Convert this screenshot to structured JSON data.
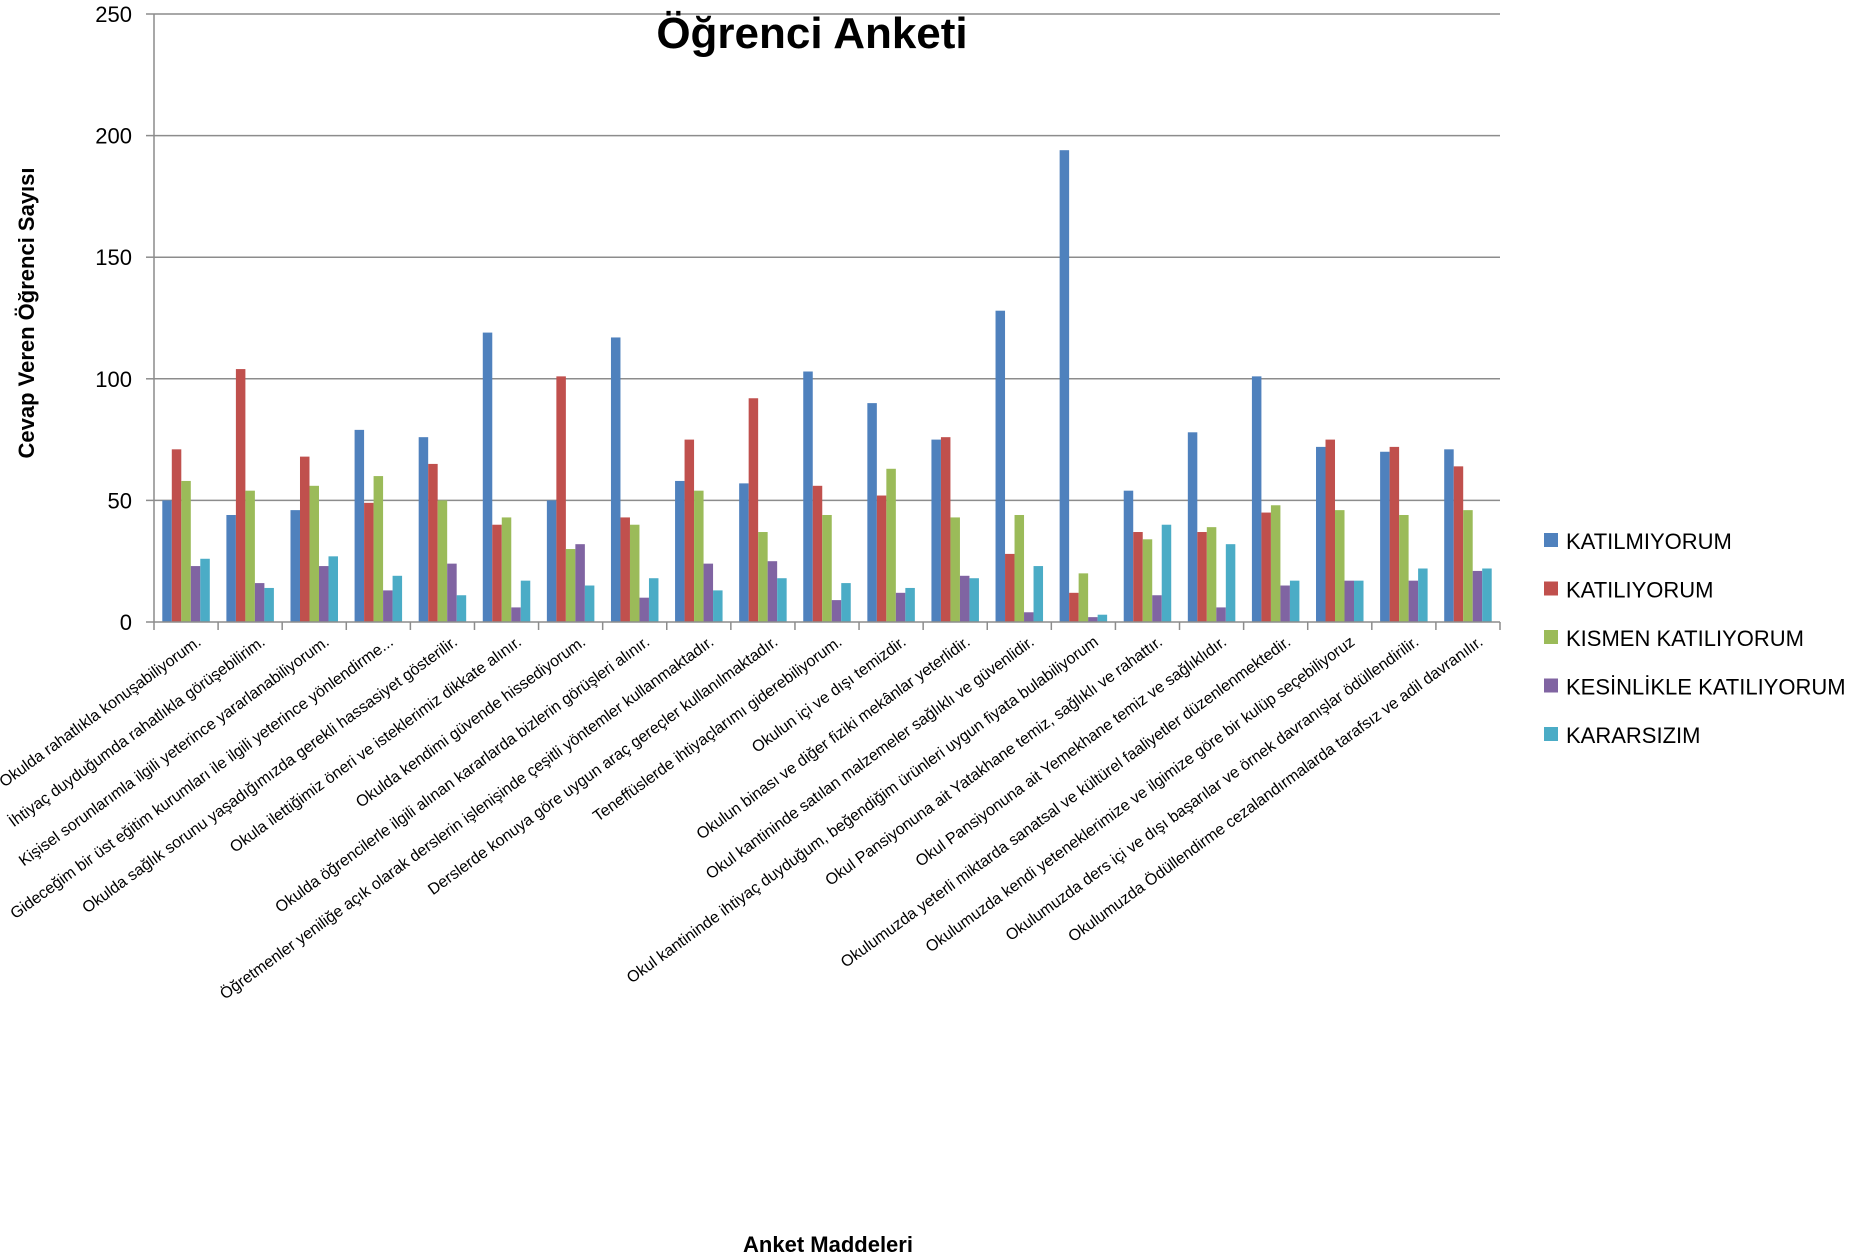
{
  "chart_data": {
    "type": "bar",
    "title": "Öğrenci Anketi",
    "xlabel": "Anket Maddeleri",
    "ylabel": "Cevap Veren Öğrenci Sayısı",
    "ylim": [
      0,
      250
    ],
    "yticks": [
      "0",
      "50",
      "100",
      "150",
      "200",
      "250"
    ],
    "grid": true,
    "legend_position": "right",
    "categories": [
      "Okulda rahatlıkla konuşabiliyorum.",
      "İhtiyaç duyduğumda rahatlıkla görüşebilirim.",
      "Kişisel sorunlarımla ilgili yeterince yararlanabiliyorum.",
      "Gideceğim bir üst eğitim kurumları ile ilgili yeterince yönlendirme...",
      "Okulda sağlık sorunu yaşadığımızda gerekli hassasiyet gösterilir.",
      "Okula ilettiğimiz öneri ve isteklerimiz dikkate alınır.",
      "Okulda kendimi güvende hissediyorum.",
      "Okulda öğrencilerle ilgili alınan kararlarda bizlerin görüşleri alınır.",
      "Öğretmenler yeniliğe açık olarak derslerin işlenişinde çeşitli yöntemler kullanmaktadır.",
      "Derslerde konuya göre uygun araç gereçler kullanılmaktadır.",
      "Teneffüslerde ihtiyaçlarımı giderebiliyorum.",
      "Okulun içi ve dışı temizdir.",
      "Okulun binası ve diğer fiziki mekânlar yeterlidir.",
      "Okul kantininde satılan malzemeler sağlıklı ve güvenlidir.",
      "Okul kantininde ihtiyaç duyduğum, beğendiğim ürünleri uygun fiyata bulabiliyorum",
      "Okul Pansiyonuna ait Yatakhane temiz, sağlıklı ve rahattır.",
      "Okul Pansiyonuna ait Yemekhane temiz ve sağlıklıdır.",
      "Okulumuzda yeterli miktarda sanatsal ve kültürel faaliyetler düzenlenmektedir.",
      "Okulumuzda kendi yeteneklerimize ve ilgimize göre bir kulüp seçebiliyoruz",
      "Okulumuzda ders içi ve dışı başarılar ve örnek davranışlar ödüllendirilir.",
      "Okulumuzda Ödüllendirme cezalandırmalarda tarafsız ve adil davranılır."
    ],
    "series": [
      {
        "name": "KATILMIYORUM",
        "color": "#4F81BD",
        "values": [
          50,
          44,
          46,
          79,
          76,
          119,
          50,
          117,
          58,
          57,
          103,
          90,
          75,
          128,
          194,
          54,
          78,
          101,
          72,
          70,
          71
        ]
      },
      {
        "name": "KATILIYORUM",
        "color": "#C0504D",
        "values": [
          71,
          104,
          68,
          49,
          65,
          40,
          101,
          43,
          75,
          92,
          56,
          52,
          76,
          28,
          12,
          37,
          37,
          45,
          75,
          72,
          64
        ]
      },
      {
        "name": "KISMEN KATILIYORUM",
        "color": "#9BBB59",
        "values": [
          58,
          54,
          56,
          60,
          50,
          43,
          30,
          40,
          54,
          37,
          44,
          63,
          43,
          44,
          20,
          34,
          39,
          48,
          46,
          44,
          46
        ]
      },
      {
        "name": "KESİNLİKLE KATILIYORUM",
        "color": "#8064A2",
        "values": [
          23,
          16,
          23,
          13,
          24,
          6,
          32,
          10,
          24,
          25,
          9,
          12,
          19,
          4,
          2,
          11,
          6,
          15,
          17,
          17,
          21
        ]
      },
      {
        "name": "KARARSIZIM",
        "color": "#4BACC6",
        "values": [
          26,
          14,
          27,
          19,
          11,
          17,
          15,
          18,
          13,
          18,
          16,
          14,
          18,
          23,
          3,
          40,
          32,
          17,
          17,
          22,
          22
        ]
      }
    ]
  }
}
